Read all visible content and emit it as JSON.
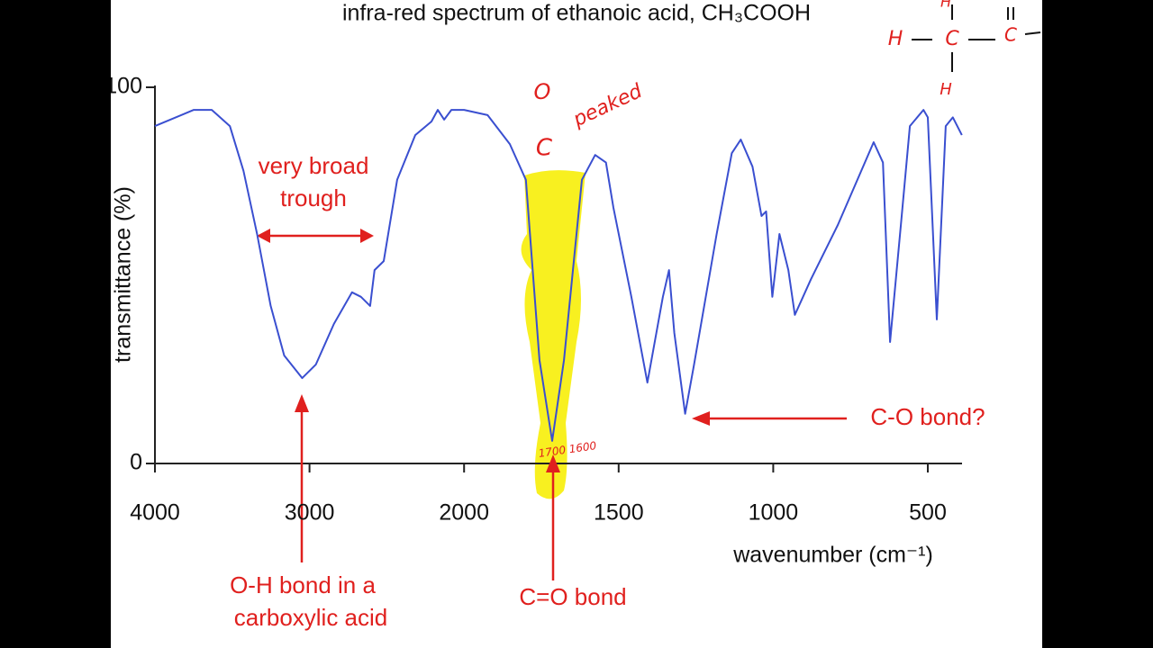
{
  "chart_data": {
    "type": "line",
    "title": "infra-red spectrum of ethanoic acid,  CH₃COOH",
    "x_label": "wavenumber (cm⁻¹)",
    "y_label": "transmittance (%)",
    "xlim": [
      4000,
      390
    ],
    "xticks": [
      4000,
      3000,
      2000,
      1500,
      1000,
      500
    ],
    "ylim": [
      0,
      100
    ],
    "yticks": [
      0,
      100
    ],
    "series": [
      {
        "color": "#3a4fd0",
        "x": [
          4000,
          3749,
          3632,
          3515,
          3427,
          3339,
          3251,
          3164,
          3047,
          2959,
          2842,
          2725,
          2667,
          2608,
          2579,
          2520,
          2433,
          2316,
          2211,
          2170,
          2129,
          2082,
          2000,
          1924,
          1852,
          1800,
          1756,
          1715,
          1677,
          1619,
          1576,
          1541,
          1517,
          1459,
          1407,
          1357,
          1337,
          1320,
          1285,
          1256,
          1183,
          1134,
          1105,
          1067,
          1038,
          1023,
          1003,
          980,
          951,
          930,
          878,
          791,
          675,
          645,
          622,
          587,
          558,
          514,
          500,
          471,
          442,
          419,
          390
        ],
        "values": [
          89.7,
          94,
          94,
          89.7,
          77.8,
          61,
          41.9,
          28.7,
          22.7,
          26.3,
          37.1,
          45.5,
          44.3,
          41.9,
          51.4,
          53.8,
          75.4,
          87.3,
          90.9,
          94,
          91.4,
          94,
          94,
          92.6,
          84.9,
          75.4,
          27.5,
          6,
          27.5,
          75.4,
          82,
          80,
          68,
          44.3,
          21.5,
          44.3,
          51.4,
          34.7,
          13.2,
          26.3,
          61,
          82.5,
          86.1,
          78.9,
          65.8,
          67,
          44.3,
          61,
          51.4,
          39.5,
          49,
          63.4,
          85.4,
          80,
          32.3,
          63.4,
          89.7,
          94,
          92,
          38.3,
          89.7,
          92,
          87.3
        ]
      }
    ],
    "annotations": [
      "very broad",
      "trough",
      "O-H bond in a",
      "carboxylic acid",
      "C=O bond",
      "C-O bond?"
    ],
    "handwriting": [
      "O",
      "C",
      "peaked",
      "1700 1600",
      "H",
      "C",
      "C",
      "H",
      "H"
    ]
  }
}
